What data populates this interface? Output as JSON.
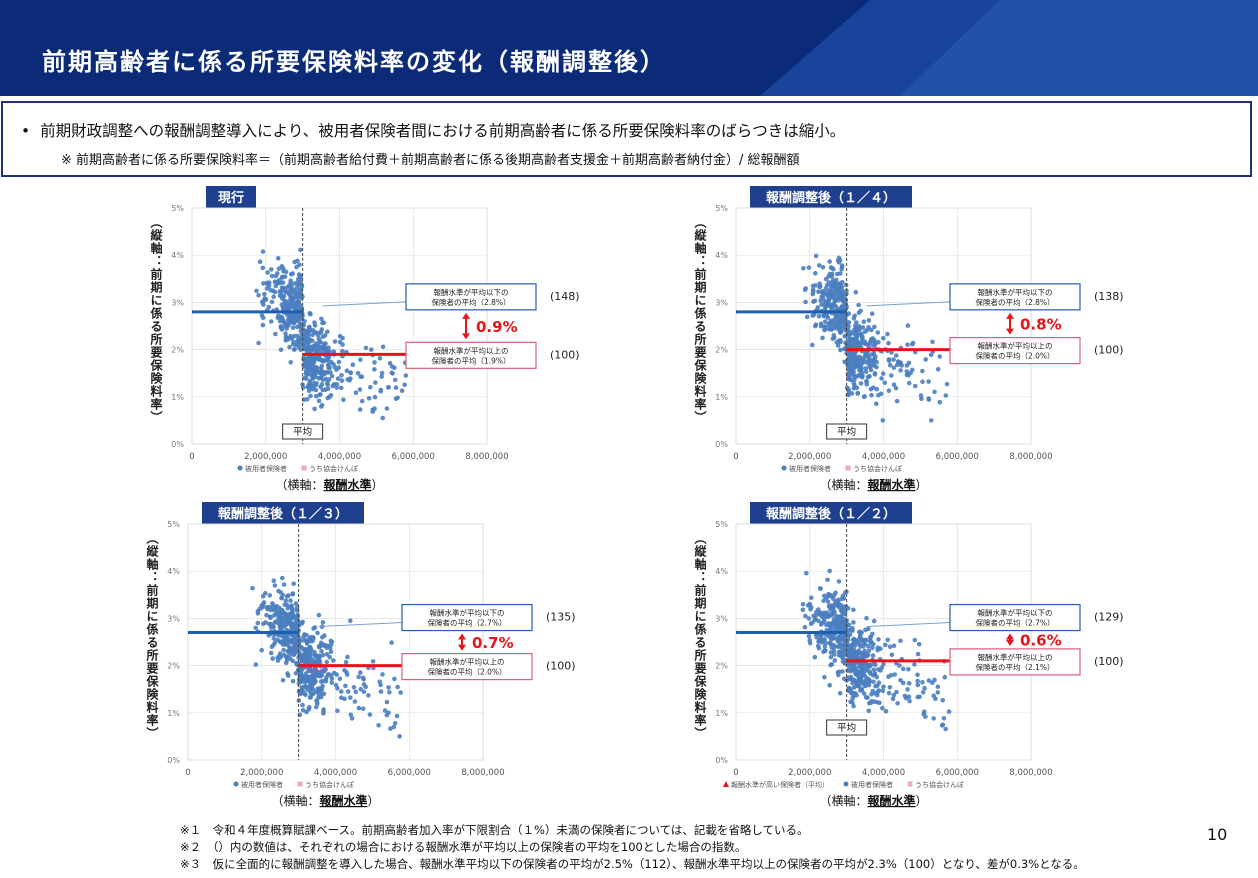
{
  "header": {
    "title": "前期高齢者に係る所要保険料率の変化（報酬調整後）",
    "bg_color": "#0b2a78",
    "accent_color": "#1d4ea8"
  },
  "summary": {
    "bullet": "前期財政調整への報酬調整導入により、被用者保険者間における前期高齢者に係る所要保険料率のばらつきは縮小。",
    "formula": "※ 前期高齢者に係る所要保険料率＝（前期高齢者給付費＋前期高齢者に係る後期高齢者支援金＋前期高齢者納付金）/ 総報酬額"
  },
  "colors": {
    "low_line": "#1f5fb0",
    "high_line": "#e8141c",
    "diff_text": "#e8141c",
    "tab_bg": "#1f3f8f",
    "points": "#4a7ec0"
  },
  "chart_data": [
    {
      "type": "scatter",
      "title": "現行",
      "ylabel": "（縦軸：前期に係る所要保険料率）",
      "xlabel": "（横軸：報酬水準）",
      "xlabel_bold": "報酬水準",
      "xlim": [
        0,
        8000000
      ],
      "ylim": [
        0,
        5
      ],
      "x_ticks": [
        "0",
        "2,000,000",
        "4,000,000",
        "6,000,000",
        "8,000,000"
      ],
      "y_ticks": [
        "0%",
        "1%",
        "2%",
        "3%",
        "4%",
        "5%"
      ],
      "average_x": 3000000,
      "average_label": "平均",
      "low_group": {
        "label_line1": "報酬水準が平均以下の",
        "label_line2": "保険者の平均（2.8%）",
        "value": 2.8,
        "index": "(148)"
      },
      "high_group": {
        "label_line1": "報酬水準が平均以上の",
        "label_line2": "保険者の平均（1.9%）",
        "value": 1.9,
        "index": "(100)"
      },
      "difference": "0.9%",
      "legend": [
        "被用者保険者",
        "うち協会けんぽ"
      ]
    },
    {
      "type": "scatter",
      "title": "報酬調整後（１／４）",
      "ylabel": "（縦軸：前期に係る所要保険料率）",
      "xlabel": "（横軸：報酬水準）",
      "xlabel_bold": "報酬水準",
      "xlim": [
        0,
        8000000
      ],
      "ylim": [
        0,
        5
      ],
      "x_ticks": [
        "0",
        "2,000,000",
        "4,000,000",
        "6,000,000",
        "8,000,000"
      ],
      "y_ticks": [
        "0%",
        "1%",
        "2%",
        "3%",
        "4%",
        "5%"
      ],
      "average_x": 3000000,
      "average_label": "平均",
      "low_group": {
        "label_line1": "報酬水準が平均以下の",
        "label_line2": "保険者の平均（2.8%）",
        "value": 2.8,
        "index": "(138)"
      },
      "high_group": {
        "label_line1": "報酬水準が平均以上の",
        "label_line2": "保険者の平均（2.0%）",
        "value": 2.0,
        "index": "(100)"
      },
      "difference": "0.8%",
      "legend": [
        "被用者保険者",
        "うち協会けんぽ"
      ]
    },
    {
      "type": "scatter",
      "title": "報酬調整後（１／３）",
      "ylabel": "（縦軸：前期に係る所要保険料率）",
      "xlabel": "（横軸：報酬水準）",
      "xlabel_bold": "報酬水準",
      "xlim": [
        0,
        8000000
      ],
      "ylim": [
        0,
        5
      ],
      "x_ticks": [
        "0",
        "2,000,000",
        "4,000,000",
        "6,000,000",
        "8,000,000"
      ],
      "y_ticks": [
        "0%",
        "1%",
        "2%",
        "3%",
        "4%",
        "5%"
      ],
      "average_x": 3000000,
      "average_label": "",
      "low_group": {
        "label_line1": "報酬水準が平均以下の",
        "label_line2": "保険者の平均（2.7%）",
        "value": 2.7,
        "index": "(135)"
      },
      "high_group": {
        "label_line1": "報酬水準が平均以上の",
        "label_line2": "保険者の平均（2.0%）",
        "value": 2.0,
        "index": "(100)"
      },
      "difference": "0.7%",
      "legend": [
        "被用者保険者",
        "うち協会けんぽ"
      ]
    },
    {
      "type": "scatter",
      "title": "報酬調整後（１／２）",
      "ylabel": "（縦軸：前期に係る所要保険料率）",
      "xlabel": "（横軸：報酬水準）",
      "xlabel_bold": "報酬水準",
      "xlim": [
        0,
        8000000
      ],
      "ylim": [
        0,
        5
      ],
      "x_ticks": [
        "0",
        "2,000,000",
        "4,000,000",
        "6,000,000",
        "8,000,000"
      ],
      "y_ticks": [
        "0%",
        "1%",
        "2%",
        "3%",
        "4%",
        "5%"
      ],
      "average_x": 3000000,
      "average_label": "平均",
      "low_group": {
        "label_line1": "報酬水準が平均以下の",
        "label_line2": "保険者の平均（2.7%）",
        "value": 2.7,
        "index": "(129)"
      },
      "high_group": {
        "label_line1": "報酬水準が平均以上の",
        "label_line2": "保険者の平均（2.1%）",
        "value": 2.1,
        "index": "(100)"
      },
      "difference": "0.6%",
      "legend": [
        "報酬水準が高い保険者（平均）",
        "被用者保険者",
        "うち協会けんぽ"
      ]
    }
  ],
  "footnotes": [
    "※１　令和４年度概算賦課ベース。前期高齢者加入率が下限割合（１%）未満の保険者については、記載を省略している。",
    "※２　（）内の数値は、それぞれの場合における報酬水準が平均以上の保険者の平均を100とした場合の指数。",
    "※３　仮に全面的に報酬調整を導入した場合、報酬水準平均以下の保険者の平均が2.5%（112）、報酬水準平均以上の保険者の平均が2.3%（100）となり、差が0.3%となる。"
  ],
  "page_number": "10"
}
